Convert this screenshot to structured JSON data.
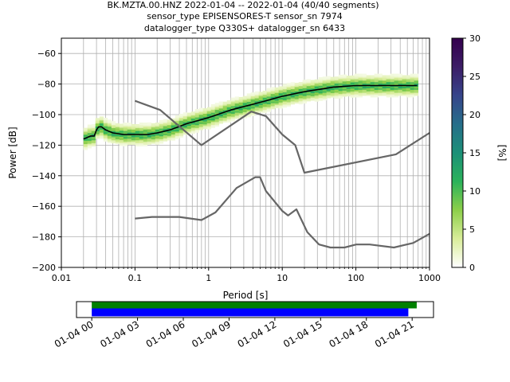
{
  "chart_data": [
    {
      "type": "heatmap",
      "title": "BK.MZTA.00.HNZ   2022-01-04 -- 2022-01-04  (40/40 segments)\nsensor_type EPISENSORES-T sensor_sn 7974\ndatalogger_type Q330S+ datalogger_sn 6433",
      "xlabel": "Period [s]",
      "ylabel": "Power [dB]",
      "xscale": "log",
      "xlim": [
        0.01,
        1000
      ],
      "ylim": [
        -200,
        -50
      ],
      "xtick_labels": [
        "0.01",
        "0.1",
        "1",
        "10",
        "100",
        "1000"
      ],
      "ytick_labels": [
        "−60",
        "−80",
        "−100",
        "−120",
        "−140",
        "−160",
        "−180",
        "−200"
      ],
      "grid": true,
      "colorbar": {
        "label": "[%]",
        "range": [
          0,
          30
        ],
        "tick_labels": [
          "0",
          "5",
          "10",
          "15",
          "20",
          "25",
          "30"
        ],
        "colormap": [
          "#ffffff",
          "#d9ed9a",
          "#8ccf4a",
          "#2bb25b",
          "#1c9078",
          "#266e8a",
          "#36448a",
          "#3c1d66",
          "#34004d"
        ]
      },
      "series": [
        {
          "name": "",
          "role": "mean PSD",
          "color": "#000000",
          "x": [
            0.02,
            0.025,
            0.028,
            0.03,
            0.032,
            0.035,
            0.04,
            0.05,
            0.07,
            0.1,
            0.15,
            0.2,
            0.3,
            0.5,
            1,
            2,
            5,
            10,
            20,
            50,
            100,
            200,
            500,
            680
          ],
          "y": [
            -116,
            -114,
            -114,
            -110,
            -108,
            -108,
            -110,
            -112,
            -113,
            -113,
            -113,
            -112,
            -110,
            -106,
            -102,
            -97,
            -92,
            -88,
            -85,
            -82,
            -81,
            -81,
            -81,
            -81
          ]
        },
        {
          "name": "",
          "role": "noise model",
          "color": "#666666",
          "x": [
            0.1,
            0.22,
            0.8,
            3.8,
            6,
            10,
            15,
            20,
            350,
            1000
          ],
          "y": [
            -91,
            -97,
            -120,
            -98,
            -101,
            -113,
            -120,
            -138,
            -126,
            -112
          ]
        },
        {
          "name": "",
          "role": "noise model",
          "color": "#666666",
          "x": [
            0.1,
            0.17,
            0.4,
            0.8,
            1.24,
            2.4,
            4.3,
            5,
            6,
            10,
            12,
            15.6,
            21.9,
            31.6,
            45,
            70,
            101,
            154,
            328,
            600,
            1000
          ],
          "y": [
            -168,
            -167,
            -167,
            -169,
            -164,
            -148,
            -141,
            -141,
            -150,
            -163,
            -166,
            -162,
            -177,
            -185,
            -187,
            -187,
            -185,
            -185,
            -187,
            -184,
            -178
          ]
        }
      ],
      "histogram_band": {
        "period_range": [
          0.02,
          700
        ],
        "note_units": "percent of segments",
        "spread_db": 8
      }
    },
    {
      "type": "bar",
      "title": "",
      "role": "data availability timeline",
      "xlim_hours": [
        -1,
        22.4
      ],
      "xtick_labels": [
        "01-04 00",
        "01-04 03",
        "01-04 06",
        "01-04 09",
        "01-04 12",
        "01-04 15",
        "01-04 18",
        "01-04 21"
      ],
      "series": [
        {
          "name": "",
          "color": "#008000",
          "start_hour": 0,
          "end_hour": 21.3
        },
        {
          "name": "",
          "color": "#0000ff",
          "start_hour": 0,
          "end_hour": 20.75
        }
      ]
    }
  ]
}
